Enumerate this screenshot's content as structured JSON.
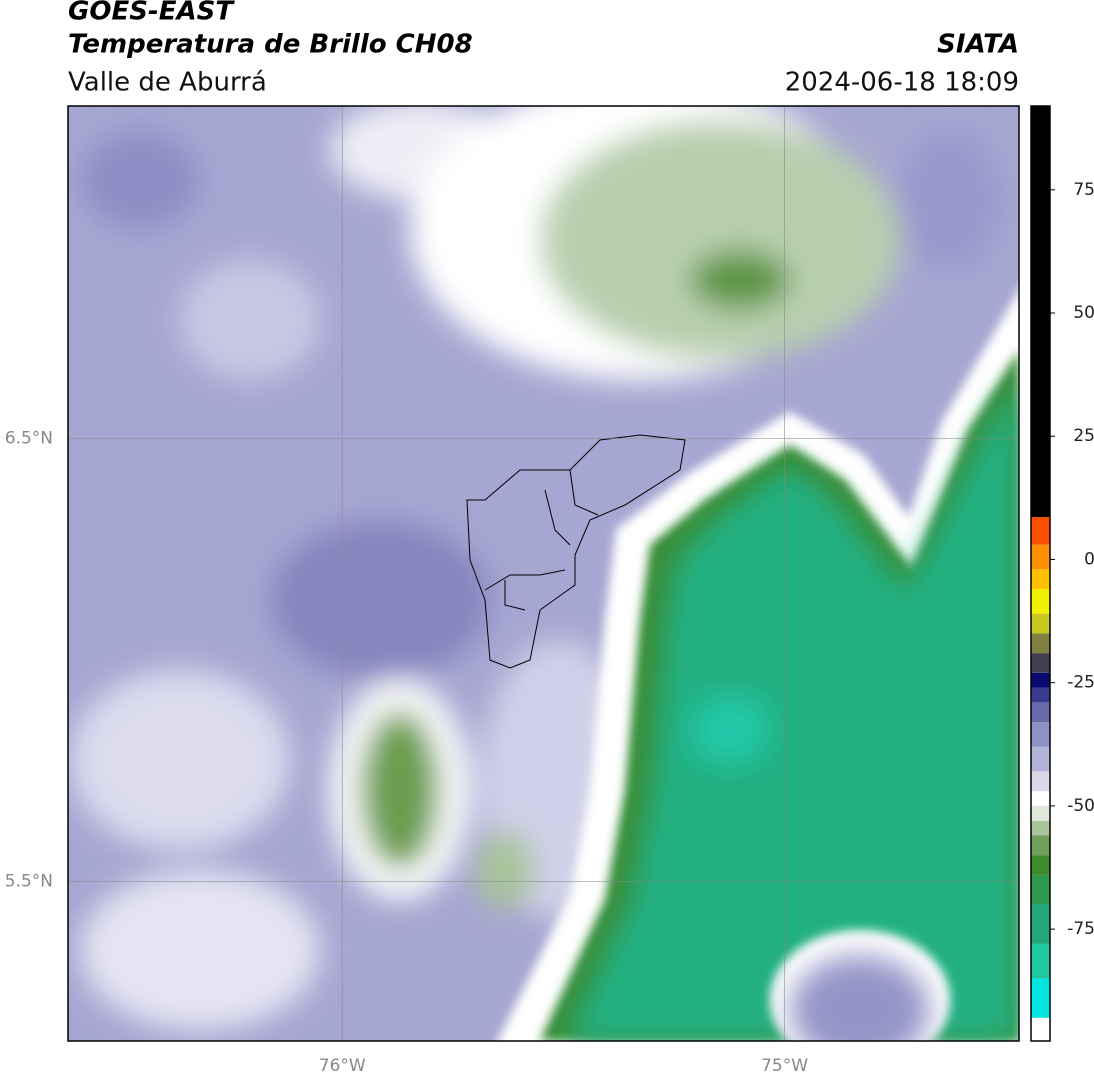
{
  "title": "GOES-EAST",
  "subtitle": "Temperatura de Brillo CH08",
  "region": "Valle de Aburrá",
  "source": "SIATA",
  "datetime": "2024-06-18 18:09",
  "map": {
    "xlim": [
      -76.62,
      -74.47
    ],
    "ylim": [
      5.14,
      7.25
    ],
    "xticks": [
      {
        "value": -76,
        "label": "76°W"
      },
      {
        "value": -75,
        "label": "75°W"
      }
    ],
    "yticks": [
      {
        "value": 5.5,
        "label": "5.5°N"
      },
      {
        "value": 6.5,
        "label": "6.5°N"
      }
    ],
    "grid": true
  },
  "colorbar": {
    "lim": [
      -97.7,
      92
    ],
    "ticks": [
      -75,
      -50,
      -25,
      0,
      25,
      50,
      75
    ],
    "levels": [
      -97.7,
      -93,
      -85,
      -78,
      -70,
      -64,
      -60,
      -56,
      -53,
      -50,
      -47,
      -43,
      -38,
      -33,
      -29,
      -26,
      -23,
      -19,
      -15,
      -11,
      -6,
      -2,
      3,
      8.6,
      92
    ],
    "colors": [
      "#ffffff",
      "#00e5e0",
      "#1fc8a0",
      "#22a878",
      "#2e9a50",
      "#3f8a2a",
      "#6fa05a",
      "#a8c49a",
      "#dfe8da",
      "#ffffff",
      "#d8d8ea",
      "#b4b4d8",
      "#9090c4",
      "#6a6aae",
      "#3a3a90",
      "#0a0a70",
      "#404050",
      "#808040",
      "#c8c820",
      "#f0f000",
      "#ffc000",
      "#ff9000",
      "#ff5000",
      "#000000"
    ]
  }
}
